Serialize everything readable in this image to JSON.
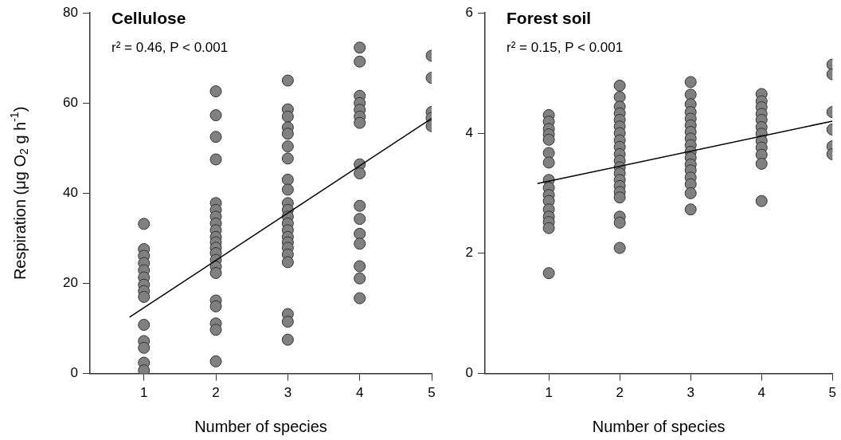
{
  "chart_data": [
    {
      "type": "scatter",
      "title": "Cellulose",
      "annotations": [
        "r² = 0.46, P < 0.001"
      ],
      "xlabel": "Number of species",
      "ylabel": "Respiration (μg O$_{2}$ g h$^{-1}$)",
      "xlim": [
        0.25,
        5
      ],
      "xticks": [
        1,
        2,
        3,
        4,
        5
      ],
      "ylim": [
        0,
        80
      ],
      "yticks": [
        0,
        20,
        40,
        60,
        80
      ],
      "grid": false,
      "legend": false,
      "marker": "circle",
      "series": [
        {
          "color": "#808080",
          "x": [
            1,
            1,
            1,
            1,
            1,
            1,
            1,
            1,
            1,
            1,
            1,
            1,
            1,
            1,
            2,
            2,
            2,
            2,
            2,
            2,
            2,
            2,
            2,
            2,
            2,
            2,
            2,
            2,
            2,
            2,
            2,
            2,
            2,
            2,
            2,
            3,
            3,
            3,
            3,
            3,
            3,
            3,
            3,
            3,
            3,
            3,
            3,
            3,
            3,
            3,
            3,
            3,
            3,
            3,
            3,
            3,
            3,
            4,
            4,
            4,
            4,
            4,
            4,
            4,
            4,
            4,
            4,
            4,
            4,
            4,
            4,
            4,
            4,
            5,
            5,
            5,
            5,
            5
          ],
          "values": [
            33.2,
            27.6,
            26.1,
            24.5,
            22.9,
            21.3,
            19.7,
            18.3,
            17.0,
            10.8,
            7.2,
            5.7,
            2.4,
            0.7,
            62.6,
            57.3,
            52.5,
            47.5,
            37.8,
            36.3,
            34.8,
            33.3,
            31.8,
            30.3,
            29.1,
            27.9,
            26.7,
            25.2,
            23.7,
            22.3,
            16.2,
            14.9,
            11.1,
            9.7,
            2.7,
            65.0,
            58.6,
            57.0,
            54.6,
            53.2,
            50.4,
            47.7,
            43.0,
            40.8,
            37.8,
            36.3,
            34.8,
            33.3,
            31.8,
            30.3,
            29.1,
            27.9,
            26.4,
            24.7,
            13.2,
            11.5,
            7.5,
            72.3,
            69.2,
            61.6,
            60.0,
            58.5,
            57.0,
            55.6,
            46.4,
            44.4,
            37.2,
            34.3,
            31.0,
            28.8,
            23.8,
            21.1,
            16.7,
            70.5,
            65.6,
            58.0,
            56.7,
            54.9
          ]
        },
        {
          "type": "line",
          "color": "#000000",
          "marker": "none",
          "x": [
            0.8,
            5
          ],
          "values": [
            12.5,
            56.6
          ]
        }
      ]
    },
    {
      "type": "scatter",
      "title": "Forest soil",
      "annotations": [
        "r² = 0.15, P < 0.001"
      ],
      "xlabel": "Number of species",
      "xlim": [
        0.1,
        5
      ],
      "xticks": [
        1,
        2,
        3,
        4,
        5
      ],
      "ylim": [
        0,
        6
      ],
      "yticks": [
        0,
        2,
        4,
        6
      ],
      "grid": false,
      "legend": false,
      "marker": "circle",
      "series": [
        {
          "color": "#808080",
          "x": [
            1,
            1,
            1,
            1,
            1,
            1,
            1,
            1,
            1,
            1,
            1,
            1,
            1,
            1,
            1,
            1,
            2,
            2,
            2,
            2,
            2,
            2,
            2,
            2,
            2,
            2,
            2,
            2,
            2,
            2,
            2,
            2,
            2,
            2,
            2,
            2,
            3,
            3,
            3,
            3,
            3,
            3,
            3,
            3,
            3,
            3,
            3,
            3,
            3,
            3,
            3,
            3,
            3,
            4,
            4,
            4,
            4,
            4,
            4,
            4,
            4,
            4,
            4,
            4,
            4,
            5,
            5,
            5,
            5,
            5,
            5
          ],
          "values": [
            4.3,
            4.19,
            4.07,
            3.98,
            3.89,
            3.67,
            3.51,
            3.22,
            3.09,
            2.97,
            2.87,
            2.73,
            2.61,
            2.52,
            2.42,
            1.67,
            4.79,
            4.6,
            4.44,
            4.33,
            4.22,
            4.11,
            4.0,
            3.88,
            3.77,
            3.65,
            3.54,
            3.43,
            3.33,
            3.22,
            3.12,
            3.02,
            2.93,
            2.61,
            2.51,
            2.09,
            4.85,
            4.64,
            4.48,
            4.35,
            4.24,
            4.13,
            4.02,
            3.91,
            3.8,
            3.69,
            3.59,
            3.48,
            3.38,
            3.26,
            3.15,
            3.0,
            2.73,
            4.65,
            4.53,
            4.43,
            4.32,
            4.22,
            4.1,
            3.99,
            3.87,
            3.76,
            3.64,
            3.49,
            2.87,
            5.14,
            4.98,
            4.35,
            4.06,
            3.78,
            3.65
          ]
        },
        {
          "type": "line",
          "color": "#000000",
          "marker": "none",
          "x": [
            0.84,
            5
          ],
          "values": [
            3.16,
            4.2
          ]
        }
      ]
    }
  ]
}
